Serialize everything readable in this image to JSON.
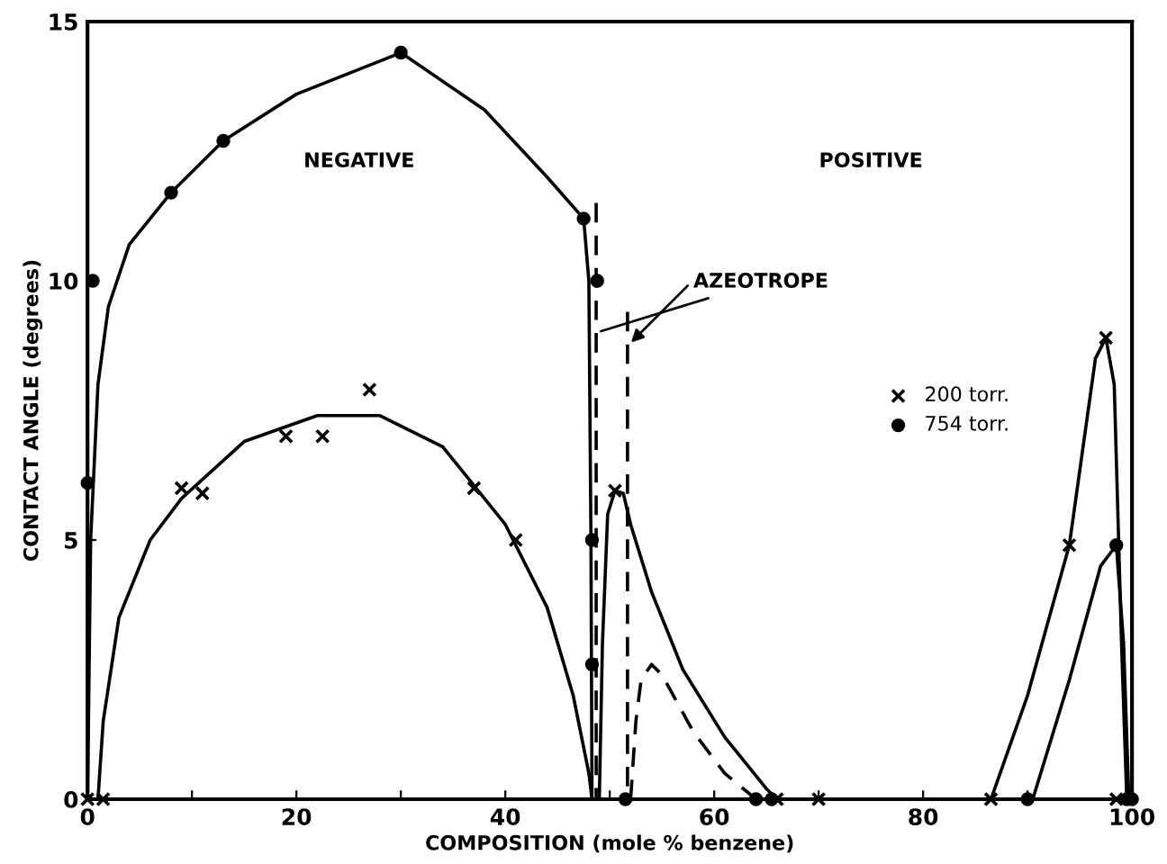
{
  "chart_data": {
    "type": "line",
    "xlabel": "COMPOSITION (mole % benzene)",
    "ylabel": "CONTACT ANGLE (degrees)",
    "xlim": [
      0,
      100
    ],
    "ylim": [
      0,
      15
    ],
    "xticks": [
      0,
      {
        "value": 10,
        "label": null
      },
      20,
      {
        "value": 30,
        "label": null
      },
      40,
      {
        "value": 50,
        "label": null
      },
      60,
      {
        "value": 70,
        "label": null
      },
      80,
      {
        "value": 90,
        "label": null
      },
      100
    ],
    "yticks": [
      0,
      5,
      10,
      15
    ],
    "grid": false,
    "legend": "center right",
    "annotations": [
      "NEGATIVE",
      "POSITIVE",
      {
        "text": "AZEOTROPE",
        "x": 48.7,
        "y": 9
      }
    ],
    "series": [
      {
        "name": "200 torr.",
        "type": "scatter",
        "marker": "cross",
        "color": "#000000",
        "x": [
          0,
          1.5,
          9,
          11,
          19,
          22.5,
          27,
          37,
          41,
          50.5,
          66,
          70,
          86.5,
          94,
          97.5,
          98.5
        ],
        "values": [
          0,
          0,
          6,
          5.9,
          7,
          7,
          7.9,
          6,
          5,
          5.95,
          0,
          0,
          0,
          4.9,
          8.9,
          0
        ]
      },
      {
        "name": "754 torr.",
        "type": "scatter",
        "marker": "circle",
        "color": "#000000",
        "x": [
          0,
          0.5,
          8,
          13,
          30,
          47.5,
          48.8,
          48.3,
          48.3,
          51.5,
          64,
          65.5,
          90,
          98.5,
          99.5,
          100
        ],
        "values": [
          6.1,
          10,
          11.7,
          12.7,
          14.4,
          11.2,
          10,
          5,
          2.6,
          0,
          0,
          0,
          0,
          4.9,
          0,
          0
        ]
      },
      {
        "line_style": "solid",
        "color": "#000000",
        "x": [
          0,
          0.3,
          1,
          2,
          4,
          8,
          13,
          20,
          30,
          38,
          44,
          47.5,
          48,
          48.2,
          48.3
        ],
        "values": [
          0,
          5,
          8,
          9.5,
          10.7,
          11.7,
          12.7,
          13.6,
          14.4,
          13.3,
          12,
          11.2,
          10,
          5,
          0
        ]
      },
      {
        "line_style": "solid",
        "color": "#000000",
        "x": [
          1,
          1.5,
          3,
          6,
          9,
          15,
          22,
          28,
          34,
          40,
          44,
          46.5,
          48,
          48.3
        ],
        "values": [
          0,
          1.5,
          3.5,
          5,
          5.8,
          6.9,
          7.4,
          7.4,
          6.8,
          5.3,
          3.7,
          2,
          0.5,
          0
        ]
      },
      {
        "line_style": "solid",
        "color": "#000000",
        "x": [
          49,
          49.3,
          49.8,
          50.5,
          51.3,
          52,
          54,
          57,
          61,
          65,
          66
        ],
        "values": [
          0,
          3,
          5.5,
          5.95,
          5.9,
          5.3,
          4,
          2.5,
          1.2,
          0.2,
          0
        ]
      },
      {
        "line_style": "dashed",
        "color": "#000000",
        "x": [
          52,
          52.5,
          53,
          54,
          55,
          58,
          61,
          64
        ],
        "values": [
          0,
          1.5,
          2.3,
          2.6,
          2.4,
          1.3,
          0.5,
          0
        ]
      },
      {
        "line_style": "dashed",
        "color": "#000000",
        "x": [
          48.7,
          48.7
        ],
        "values": [
          11.5,
          0
        ]
      },
      {
        "line_style": "dashed",
        "color": "#000000",
        "x": [
          51.7,
          51.7
        ],
        "values": [
          9.4,
          0
        ]
      },
      {
        "line_style": "solid",
        "color": "#000000",
        "x": [
          86.5,
          90,
          94,
          96.5,
          97.5,
          98.3,
          99,
          99.5
        ],
        "values": [
          0,
          2,
          4.9,
          8.5,
          8.9,
          8,
          3,
          0
        ]
      },
      {
        "line_style": "solid",
        "color": "#000000",
        "x": [
          90.5,
          94,
          97,
          98.5,
          99.2,
          99.7
        ],
        "values": [
          0,
          2.3,
          4.5,
          4.9,
          3,
          0
        ]
      }
    ]
  }
}
